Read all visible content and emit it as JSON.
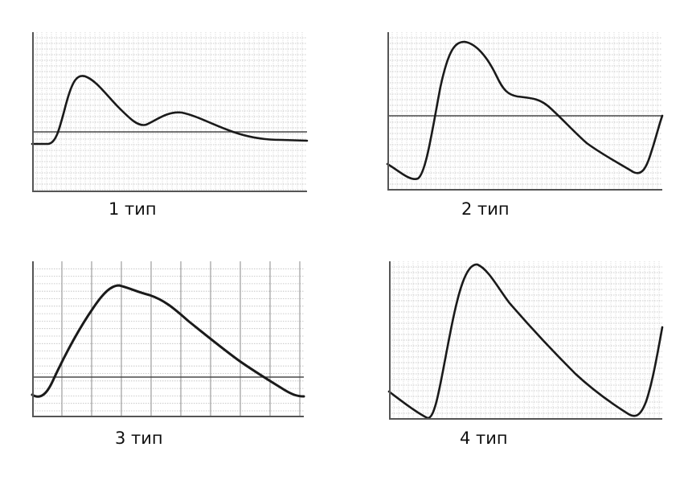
{
  "panels": [
    {
      "label": "1 тип"
    },
    {
      "label": "2 тип"
    },
    {
      "label": "3 тип"
    },
    {
      "label": "4 тип"
    }
  ],
  "colors": {
    "grid_fine": "#bdbdbd",
    "grid_major": "#8a8a8a",
    "frame": "#555555",
    "baseline": "#4a4a4a",
    "curve": "#1a1a1a",
    "text": "#111111"
  }
}
